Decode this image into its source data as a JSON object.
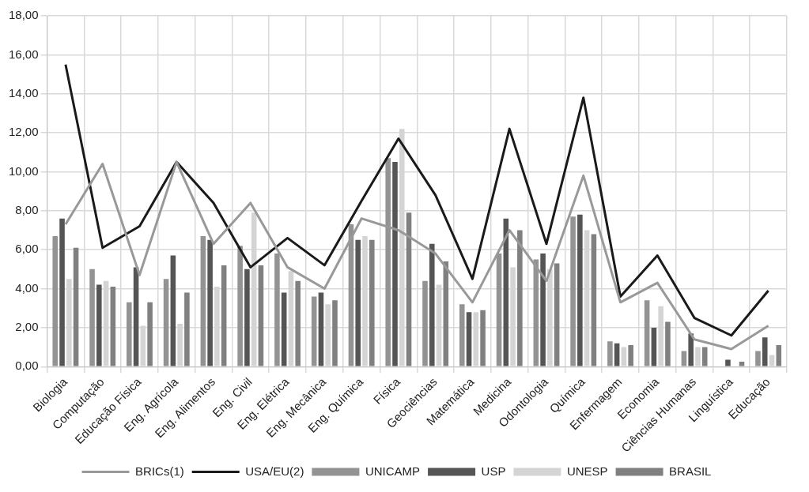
{
  "chart_data": {
    "type": "bar",
    "categories": [
      "Biologia",
      "Computação",
      "Educação Física",
      "Eng. Agrícola",
      "Eng. Alimentos",
      "Eng. Civil",
      "Eng. Elétrica",
      "Eng. Mecânica",
      "Eng. Química",
      "Física",
      "Geociências",
      "Matemática",
      "Medicina",
      "Odontologia",
      "Química",
      "Enfermagem",
      "Economia",
      "Ciências Humanas",
      "Linguística",
      "Educação"
    ],
    "series": [
      {
        "name": "UNICAMP",
        "color": "#939393",
        "values": [
          6.7,
          5.0,
          3.3,
          4.5,
          6.7,
          6.2,
          5.8,
          3.6,
          7.3,
          10.7,
          4.4,
          3.2,
          5.8,
          5.5,
          7.7,
          1.3,
          3.4,
          0.8,
          null,
          0.8
        ]
      },
      {
        "name": "USP",
        "color": "#555555",
        "values": [
          7.6,
          4.2,
          5.1,
          5.7,
          6.5,
          5.0,
          3.8,
          3.8,
          6.5,
          10.5,
          6.3,
          2.8,
          7.6,
          5.8,
          7.8,
          1.2,
          2.0,
          1.7,
          0.35,
          1.5
        ]
      },
      {
        "name": "UNESP",
        "color": "#d4d4d4",
        "values": [
          4.5,
          4.4,
          2.1,
          2.2,
          4.1,
          7.9,
          4.9,
          3.2,
          6.7,
          12.2,
          4.2,
          2.8,
          5.1,
          5.0,
          7.0,
          1.0,
          3.1,
          1.0,
          null,
          0.6
        ]
      },
      {
        "name": "BRASIL",
        "color": "#808080",
        "values": [
          6.1,
          4.1,
          3.3,
          3.8,
          5.2,
          5.2,
          4.4,
          3.4,
          6.5,
          7.9,
          5.4,
          2.9,
          7.0,
          5.3,
          6.8,
          1.1,
          2.3,
          1.0,
          0.25,
          1.1
        ]
      },
      {
        "name": "BRICs(1)",
        "type": "line",
        "color": "#999999",
        "values": [
          7.3,
          10.4,
          4.7,
          10.5,
          6.3,
          8.4,
          5.1,
          4.0,
          7.6,
          7.0,
          5.8,
          3.3,
          7.0,
          4.4,
          9.8,
          3.3,
          4.3,
          1.4,
          0.9,
          2.1
        ]
      },
      {
        "name": "USA/EU(2)",
        "type": "line",
        "color": "#1a1a1a",
        "values": [
          15.5,
          6.1,
          7.2,
          10.5,
          8.4,
          5.1,
          6.6,
          5.2,
          8.5,
          11.7,
          8.8,
          4.5,
          12.2,
          6.3,
          13.8,
          3.6,
          5.7,
          2.5,
          1.6,
          3.9
        ]
      }
    ],
    "ylim": [
      0,
      18
    ],
    "yticks": [
      {
        "value": 0,
        "label": "0,00"
      },
      {
        "value": 2,
        "label": "2,00"
      },
      {
        "value": 4,
        "label": "4,00"
      },
      {
        "value": 6,
        "label": "6,00"
      },
      {
        "value": 8,
        "label": "8,00"
      },
      {
        "value": 10,
        "label": "10,00"
      },
      {
        "value": 12,
        "label": "12,00"
      },
      {
        "value": 14,
        "label": "14,00"
      },
      {
        "value": 16,
        "label": "16,00"
      },
      {
        "value": 18,
        "label": "18,00"
      }
    ],
    "grid": true,
    "legend": "bottom",
    "marker": "none"
  }
}
